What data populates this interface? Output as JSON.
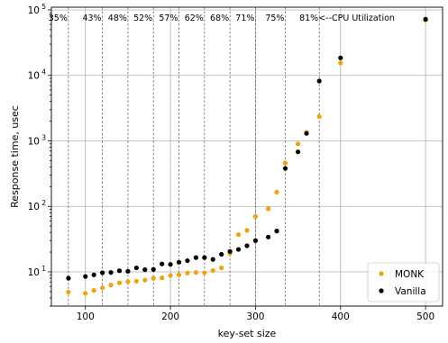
{
  "chart_data": {
    "type": "scatter",
    "xlabel": "key-set size",
    "ylabel": "Response time, usec",
    "xlim": [
      60,
      520
    ],
    "ylim": [
      3,
      110000
    ],
    "yscale": "log",
    "grid": true,
    "legend_position": "lower-right",
    "x_ticks": [
      100,
      200,
      300,
      400,
      500
    ],
    "x_tick_labels": [
      "100",
      "200",
      "300",
      "400",
      "500"
    ],
    "y_ticks": [
      10,
      100,
      1000,
      10000,
      100000
    ],
    "y_tick_labels": [
      {
        "base": "10",
        "exp": "1"
      },
      {
        "base": "10",
        "exp": "2"
      },
      {
        "base": "10",
        "exp": "3"
      },
      {
        "base": "10",
        "exp": "4"
      },
      {
        "base": "10",
        "exp": "5"
      }
    ],
    "cpu_utilization": {
      "label": "<--CPU Utilization",
      "markers": [
        {
          "x": 80,
          "label": "35%"
        },
        {
          "x": 120,
          "label": "43%"
        },
        {
          "x": 150,
          "label": "48%"
        },
        {
          "x": 180,
          "label": "52%"
        },
        {
          "x": 210,
          "label": "57%"
        },
        {
          "x": 240,
          "label": "62%"
        },
        {
          "x": 270,
          "label": "68%"
        },
        {
          "x": 300,
          "label": "71%"
        },
        {
          "x": 335,
          "label": "75%"
        },
        {
          "x": 375,
          "label": "81%"
        }
      ]
    },
    "series": [
      {
        "name": "MONK",
        "color": "#f5a20a",
        "points": [
          [
            80,
            4.9
          ],
          [
            100,
            4.7
          ],
          [
            110,
            5.2
          ],
          [
            120,
            5.7
          ],
          [
            130,
            6.3
          ],
          [
            140,
            6.8
          ],
          [
            150,
            7.1
          ],
          [
            160,
            7.2
          ],
          [
            170,
            7.5
          ],
          [
            180,
            8.0
          ],
          [
            190,
            8.1
          ],
          [
            200,
            8.8
          ],
          [
            210,
            9.0
          ],
          [
            220,
            9.6
          ],
          [
            230,
            9.8
          ],
          [
            240,
            9.7
          ],
          [
            250,
            10.5
          ],
          [
            260,
            11.5
          ],
          [
            270,
            19
          ],
          [
            280,
            37
          ],
          [
            290,
            43
          ],
          [
            300,
            70
          ],
          [
            315,
            92
          ],
          [
            325,
            165
          ],
          [
            335,
            460
          ],
          [
            350,
            900
          ],
          [
            360,
            1350
          ],
          [
            375,
            2350
          ],
          [
            400,
            15500
          ],
          [
            500,
            70000
          ]
        ]
      },
      {
        "name": "Vanilla",
        "color": "#000000",
        "points": [
          [
            80,
            8.0
          ],
          [
            100,
            8.5
          ],
          [
            110,
            9.0
          ],
          [
            120,
            9.7
          ],
          [
            130,
            9.8
          ],
          [
            140,
            10.4
          ],
          [
            150,
            10.2
          ],
          [
            160,
            11.5
          ],
          [
            170,
            10.8
          ],
          [
            180,
            10.9
          ],
          [
            190,
            13.2
          ],
          [
            200,
            13.0
          ],
          [
            210,
            14.0
          ],
          [
            220,
            14.8
          ],
          [
            230,
            16.5
          ],
          [
            240,
            16.5
          ],
          [
            250,
            15.5
          ],
          [
            260,
            18.5
          ],
          [
            270,
            20.5
          ],
          [
            280,
            22
          ],
          [
            290,
            25
          ],
          [
            300,
            30
          ],
          [
            315,
            34
          ],
          [
            325,
            42
          ],
          [
            335,
            380
          ],
          [
            350,
            680
          ],
          [
            360,
            1300
          ],
          [
            375,
            8200
          ],
          [
            400,
            18500
          ],
          [
            500,
            72000
          ]
        ]
      }
    ]
  }
}
